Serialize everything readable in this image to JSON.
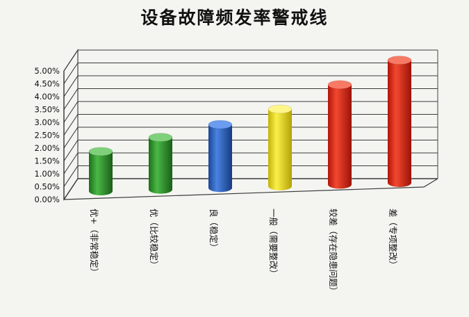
{
  "chart_data": {
    "type": "bar",
    "title": "设备故障频发率警戒线",
    "xlabel": "",
    "ylabel": "",
    "categories": [
      "优+（非常稳定）",
      "优（比较稳定）",
      "良（稳定）",
      "一般（需要整改）",
      "较差（存在隐患问题）",
      "差（专项整改）"
    ],
    "values": [
      0.0165,
      0.022,
      0.027,
      0.033,
      0.0425,
      0.052
    ],
    "ylim": [
      0,
      0.05
    ],
    "yticks": [
      "0.00%",
      "0.50%",
      "1.00%",
      "1.50%",
      "2.00%",
      "2.50%",
      "3.00%",
      "3.50%",
      "4.00%",
      "4.50%",
      "5.00%"
    ],
    "grid": true,
    "legend": "none",
    "style": "3d-cylinder",
    "colors": [
      "#2e9a2c",
      "#2e9a2c",
      "#2a63c8",
      "#f0e21c",
      "#e8281a",
      "#e8281a"
    ]
  }
}
